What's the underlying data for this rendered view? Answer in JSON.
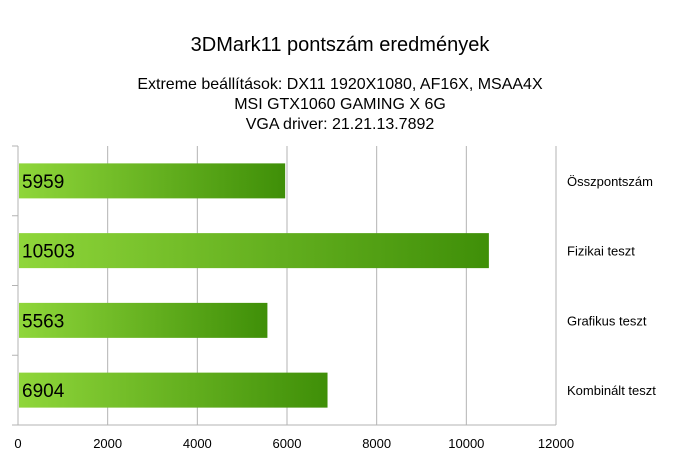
{
  "chart_data": {
    "type": "bar",
    "orientation": "horizontal",
    "title": "3DMark11 pontszám eredmények",
    "subtitle_lines": [
      "Extreme beállítások: DX11 1920X1080, AF16X, MSAA4X",
      "MSI GTX1060 GAMING X 6G",
      "VGA driver: 21.21.13.7892"
    ],
    "categories": [
      "Összpontszám",
      "Fizikai teszt",
      "Grafikus teszt",
      "Kombinált teszt"
    ],
    "values": [
      5959,
      10503,
      5563,
      6904
    ],
    "data_labels": [
      "5959",
      "10503",
      "5563",
      "6904"
    ],
    "xlim": [
      0,
      12000
    ],
    "x_ticks": [
      "0",
      "2000",
      "4000",
      "6000",
      "8000",
      "10000",
      "12000"
    ],
    "grid": true,
    "legend": "none",
    "colors": {
      "bar_light": "#8fd63a",
      "bar_dark": "#3f8f08",
      "grid": "#b3b3b3"
    }
  }
}
